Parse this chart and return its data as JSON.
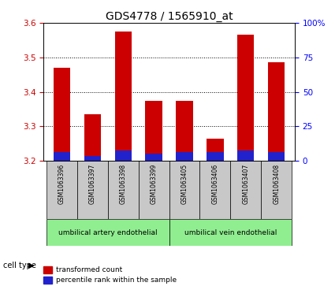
{
  "title": "GDS4778 / 1565910_at",
  "samples": [
    "GSM1063396",
    "GSM1063397",
    "GSM1063398",
    "GSM1063399",
    "GSM1063405",
    "GSM1063406",
    "GSM1063407",
    "GSM1063408"
  ],
  "red_values": [
    3.47,
    3.335,
    3.575,
    3.375,
    3.375,
    3.265,
    3.565,
    3.485
  ],
  "blue_values": [
    3.225,
    3.215,
    3.23,
    3.22,
    3.225,
    3.225,
    3.23,
    3.225
  ],
  "base": 3.2,
  "ylim": [
    3.2,
    3.6
  ],
  "yticks_left": [
    3.2,
    3.3,
    3.4,
    3.5,
    3.6
  ],
  "yticks_right": [
    0,
    25,
    50,
    75,
    100
  ],
  "ylim_right": [
    0,
    100
  ],
  "group1_label": "umbilical artery endothelial",
  "group2_label": "umbilical vein endothelial",
  "group1_count": 4,
  "group2_count": 4,
  "cell_type_label": "cell type",
  "legend1": "transformed count",
  "legend2": "percentile rank within the sample",
  "red_color": "#cc0000",
  "blue_color": "#2222cc",
  "bar_width": 0.55,
  "bg_label_gray": "#c8c8c8",
  "bg_label_green": "#90ee90",
  "title_fontsize": 10,
  "tick_fontsize": 7.5,
  "dotted_grid_yticks": [
    3.3,
    3.4,
    3.5
  ],
  "right_ytick_labels": [
    "0",
    "25",
    "50",
    "75",
    "100%"
  ]
}
